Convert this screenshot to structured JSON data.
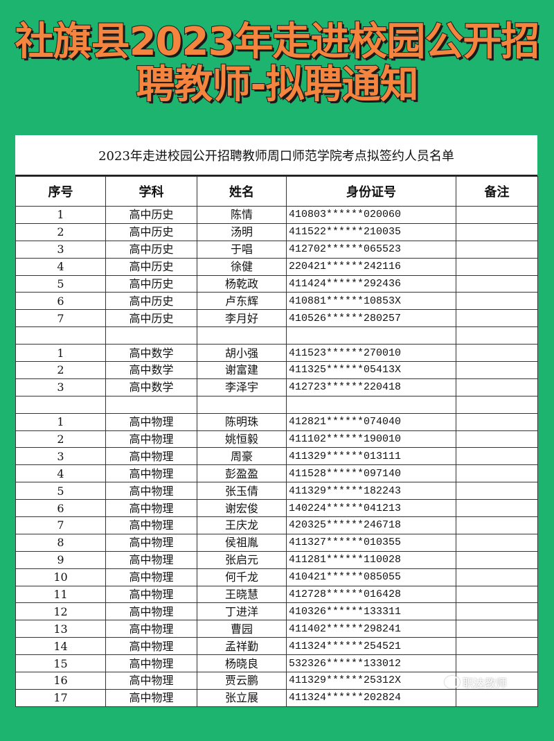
{
  "headline": {
    "line1": "社旗县2023年走进校园公开招",
    "line2": "聘教师-拟聘通知"
  },
  "table": {
    "caption": "2023年走进校园公开招聘教师周口师范学院考点拟签约人员名单",
    "headers": [
      "序号",
      "学科",
      "姓名",
      "身份证号",
      "备注"
    ],
    "rows": [
      [
        "1",
        "高中历史",
        "陈情",
        "410803******020060",
        ""
      ],
      [
        "2",
        "高中历史",
        "汤明",
        "411522******210035",
        ""
      ],
      [
        "3",
        "高中历史",
        "于唱",
        "412702******065523",
        ""
      ],
      [
        "4",
        "高中历史",
        "徐健",
        "220421******242116",
        ""
      ],
      [
        "5",
        "高中历史",
        "杨乾政",
        "411424******292436",
        ""
      ],
      [
        "6",
        "高中历史",
        "卢东辉",
        "410881******10853X",
        ""
      ],
      [
        "7",
        "高中历史",
        "李月好",
        "410526******280257",
        ""
      ],
      [
        "",
        "",
        "",
        "",
        ""
      ],
      [
        "1",
        "高中数学",
        "胡小强",
        "411523******270010",
        ""
      ],
      [
        "2",
        "高中数学",
        "谢富建",
        "411325******05413X",
        ""
      ],
      [
        "3",
        "高中数学",
        "李泽宇",
        "412723******220418",
        ""
      ],
      [
        "",
        "",
        "",
        "",
        ""
      ],
      [
        "1",
        "高中物理",
        "陈明珠",
        "412821******074040",
        ""
      ],
      [
        "2",
        "高中物理",
        "姚恒毅",
        "411102******190010",
        ""
      ],
      [
        "3",
        "高中物理",
        "周豪",
        "411329******013111",
        ""
      ],
      [
        "4",
        "高中物理",
        "彭盈盈",
        "411528******097140",
        ""
      ],
      [
        "5",
        "高中物理",
        "张玉倩",
        "411329******182243",
        ""
      ],
      [
        "6",
        "高中物理",
        "谢宏俊",
        "140224******041213",
        ""
      ],
      [
        "7",
        "高中物理",
        "王庆龙",
        "420325******246718",
        ""
      ],
      [
        "8",
        "高中物理",
        "侯祖胤",
        "411327******010355",
        ""
      ],
      [
        "9",
        "高中物理",
        "张启元",
        "411281******110028",
        ""
      ],
      [
        "10",
        "高中物理",
        "何千龙",
        "410421******085055",
        ""
      ],
      [
        "11",
        "高中物理",
        "王晓慧",
        "412728******016428",
        ""
      ],
      [
        "12",
        "高中物理",
        "丁进洋",
        "410326******133311",
        ""
      ],
      [
        "13",
        "高中物理",
        "曹园",
        "411402******298241",
        ""
      ],
      [
        "14",
        "高中物理",
        "孟祥勤",
        "411324******254521",
        ""
      ],
      [
        "15",
        "高中物理",
        "杨晓良",
        "532326******133012",
        ""
      ],
      [
        "16",
        "高中物理",
        "贾云鹏",
        "411329******25312X",
        ""
      ],
      [
        "17",
        "高中物理",
        "张立展",
        "411324******202824",
        ""
      ]
    ]
  },
  "watermark": {
    "text": "职达教师",
    "icon": "wechat-icon"
  },
  "colors": {
    "background": "#1cb46e",
    "headline": "#f5843e"
  }
}
